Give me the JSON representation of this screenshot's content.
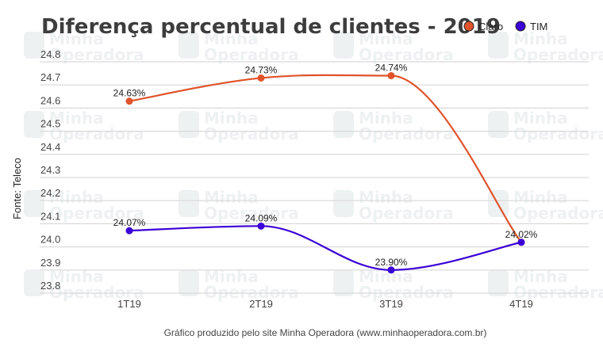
{
  "chart_data": {
    "type": "line",
    "title": "Diferença percentual de clientes - 2019",
    "xlabel": "",
    "ylabel": "Fonte: Teleco",
    "categories": [
      "1T19",
      "2T19",
      "3T19",
      "4T19"
    ],
    "ylim": [
      23.8,
      24.8
    ],
    "yticks": [
      "24.8",
      "24.7",
      "24.6",
      "24.5",
      "24.4",
      "24.3",
      "24.2",
      "24.1",
      "24.0",
      "23.9",
      "23.8"
    ],
    "ytick_values": [
      24.8,
      24.7,
      24.6,
      24.5,
      24.4,
      24.3,
      24.2,
      24.1,
      24.0,
      23.9,
      23.8
    ],
    "grid": true,
    "legend_position": "top-right",
    "series": [
      {
        "name": "Claro",
        "color": "#e0532b",
        "values": [
          24.63,
          24.73,
          24.74,
          24.02
        ],
        "labels": [
          "24.63%",
          "24.73%",
          "24.74%",
          ""
        ]
      },
      {
        "name": "TIM",
        "color": "#3a00d6",
        "values": [
          24.07,
          24.09,
          23.9,
          24.02
        ],
        "labels": [
          "24.07%",
          "24.09%",
          "23.90%",
          "24.02%"
        ]
      }
    ],
    "footer": "Gráfico produzido pelo site Minha Operadora (www.minhaoperadora.com.br)"
  },
  "watermark": {
    "line1": "Minha",
    "line2": "Operadora"
  }
}
